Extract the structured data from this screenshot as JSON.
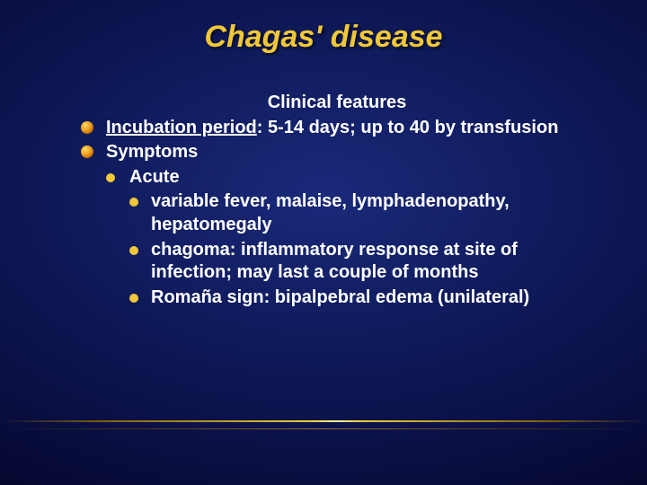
{
  "title": "Chagas' disease",
  "subtitle": "Clinical features",
  "bullets": {
    "incubation_label": "Incubation period",
    "incubation_rest": ":  5-14 days; up to 40 by transfusion",
    "symptoms": "Symptoms",
    "acute": "Acute",
    "acute_items": {
      "a": "variable fever, malaise, lymphadenopathy, hepatomegaly",
      "b": "chagoma:  inflammatory response at site of infection; may last a couple of months",
      "c": "Romaña sign:  bipalpebral edema (unilateral)"
    }
  },
  "colors": {
    "title": "#f0c838",
    "text": "#ffffff",
    "bullet": "#f0c838",
    "bg_center": "#1a2a7a",
    "bg_edge": "#030418"
  },
  "fonts": {
    "title_size": 34,
    "body_size": 20
  }
}
